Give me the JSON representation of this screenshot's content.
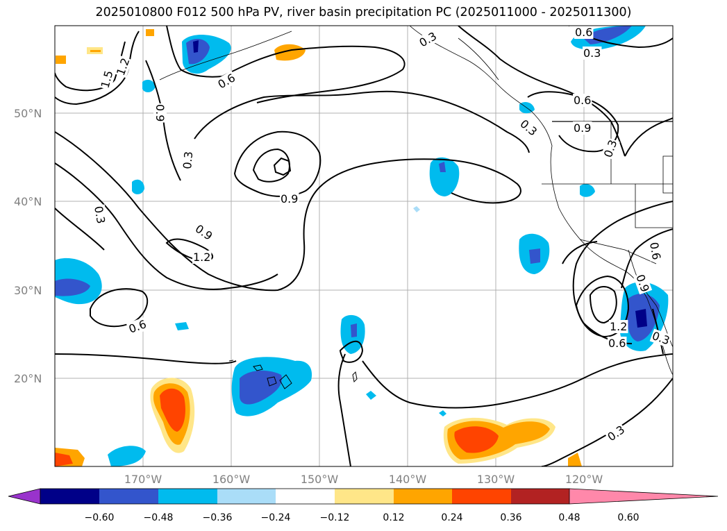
{
  "title": "2025010800 F012 500 hPa PV, river basin precipitation PC (2025011000 - 2025011300)",
  "lat_labels": [
    "50°N",
    "40°N",
    "30°N",
    "20°N"
  ],
  "lon_labels": [
    "170°W",
    "160°W",
    "150°W",
    "140°W",
    "130°W",
    "120°W"
  ],
  "colorbar": {
    "ticks": [
      "−0.60",
      "−0.48",
      "−0.36",
      "−0.24",
      "−0.12",
      "0.12",
      "0.24",
      "0.36",
      "0.48",
      "0.60"
    ],
    "colors": [
      "#9933cc",
      "#000088",
      "#3355cc",
      "#00bbee",
      "#aaddf8",
      "#ffffff",
      "#ffe688",
      "#ffa500",
      "#ff4400",
      "#b22222",
      "#ff88aa"
    ]
  },
  "contour_labels": {
    "c1": "0.6",
    "c2": "0.3",
    "c3": "0.6",
    "c4": "0.3",
    "c5": "1.5",
    "c6": "1.2",
    "c7": "0.9",
    "c8": "0.3",
    "c9": "0.9",
    "c10": "0.9",
    "c11": "1.2",
    "c12": "0.3",
    "c13": "0.6",
    "c14": "0.3",
    "c15": "0.9",
    "c16": "0.6",
    "c17": "0.3",
    "c18": "0.6",
    "c19": "0.9",
    "c20": "1.2",
    "c21": "0.6",
    "c22": "0.3",
    "c23": "0.3"
  }
}
